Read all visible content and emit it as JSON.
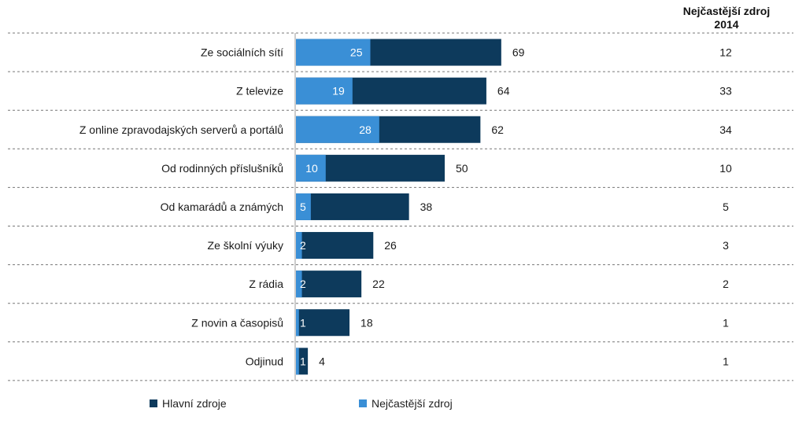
{
  "header": {
    "column_title_line1": "Nejčastější zdroj",
    "column_title_line2": "2014"
  },
  "legend": {
    "main_label": "Hlavní zdroje",
    "frequent_label": "Nejčastější zdroj"
  },
  "colors": {
    "main": "#0d3a5c",
    "frequent": "#3a8fd6",
    "divider": "#777777",
    "axis": "#9a9a9a"
  },
  "chart_data": {
    "type": "bar",
    "orientation": "horizontal",
    "stacking": "overlay",
    "categories": [
      "Ze sociálních sítí",
      "Z televize",
      "Z online zpravodajských serverů a portálů",
      "Od rodinných příslušníků",
      "Od kamarádů a známých",
      "Ze školní výuky",
      "Z rádia",
      "Z novin a časopisů",
      "Odjinud"
    ],
    "series": [
      {
        "name": "Hlavní zdroje",
        "values": [
          69,
          64,
          62,
          50,
          38,
          26,
          22,
          18,
          4
        ]
      },
      {
        "name": "Nejčastější zdroj",
        "values": [
          25,
          19,
          28,
          10,
          5,
          2,
          2,
          1,
          1
        ]
      }
    ],
    "column_2014": {
      "title": "Nejčastější zdroj 2014",
      "values": [
        12,
        33,
        34,
        10,
        5,
        3,
        2,
        1,
        1
      ]
    },
    "title": "",
    "xlabel": "",
    "ylabel": "",
    "xlim": [
      0,
      100
    ],
    "grid": false,
    "legend_position": "bottom"
  }
}
